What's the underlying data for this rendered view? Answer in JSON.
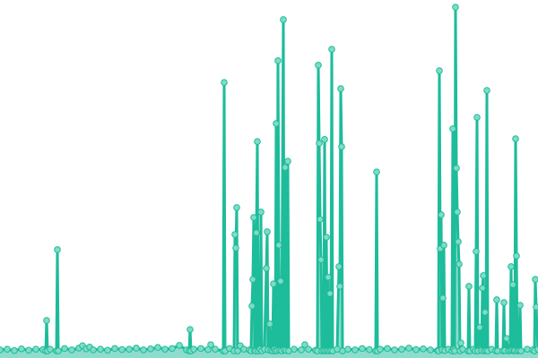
{
  "chart_data": {
    "type": "area",
    "title": "",
    "xlabel": "",
    "ylabel": "",
    "xlim": [
      0,
      600
    ],
    "ylim": [
      0,
      100
    ],
    "grid": false,
    "axes_visible": false,
    "legend": "none",
    "colors": {
      "line": "#1dbc9a",
      "marker_fill": "#7edcc5",
      "area": "#1dbc9a"
    },
    "series": [
      {
        "points": [
          [
            0,
            0.8
          ],
          [
            8,
            1
          ],
          [
            16,
            0.6
          ],
          [
            24,
            1.1
          ],
          [
            32,
            0.7
          ],
          [
            40,
            1
          ],
          [
            48,
            0.9
          ],
          [
            51,
            0.5
          ],
          [
            52,
            9.3
          ],
          [
            53,
            0.5
          ],
          [
            56,
            1
          ],
          [
            63,
            0.5
          ],
          [
            64,
            29.8
          ],
          [
            65,
            0.5
          ],
          [
            72,
            1.2
          ],
          [
            80,
            0.8
          ],
          [
            88,
            1.3
          ],
          [
            92,
            2
          ],
          [
            96,
            1.1
          ],
          [
            100,
            1.6
          ],
          [
            104,
            0.8
          ],
          [
            112,
            1
          ],
          [
            120,
            0.7
          ],
          [
            128,
            1.2
          ],
          [
            136,
            0.9
          ],
          [
            144,
            1
          ],
          [
            152,
            1.3
          ],
          [
            160,
            0.8
          ],
          [
            168,
            1.1
          ],
          [
            176,
            1.5
          ],
          [
            184,
            1
          ],
          [
            192,
            1.2
          ],
          [
            200,
            2.1
          ],
          [
            208,
            0.8
          ],
          [
            211,
            0.5
          ],
          [
            212,
            6.7
          ],
          [
            213,
            0.5
          ],
          [
            216,
            1
          ],
          [
            224,
            1.2
          ],
          [
            232,
            0.9
          ],
          [
            235,
            2.3
          ],
          [
            240,
            1
          ],
          [
            249,
            0.5
          ],
          [
            250,
            78.2
          ],
          [
            251,
            0.5
          ],
          [
            256,
            1.2
          ],
          [
            261,
            0.5
          ],
          [
            262,
            34.2
          ],
          [
            263,
            30.3
          ],
          [
            264,
            42
          ],
          [
            265,
            0.5
          ],
          [
            268,
            2
          ],
          [
            272,
            1
          ],
          [
            278,
            0.8
          ],
          [
            280,
            0.5
          ],
          [
            281,
            13.5
          ],
          [
            282,
            21.2
          ],
          [
            283,
            39.1
          ],
          [
            284,
            0.6
          ],
          [
            285,
            0.5
          ],
          [
            286,
            34.7
          ],
          [
            287,
            61.1
          ],
          [
            288,
            0.5
          ],
          [
            290,
            1
          ],
          [
            291,
            40.7
          ],
          [
            292,
            0.5
          ],
          [
            295,
            1
          ],
          [
            297,
            24.4
          ],
          [
            298,
            35
          ],
          [
            299,
            0.8
          ],
          [
            301,
            8.3
          ],
          [
            302,
            0.6
          ],
          [
            304,
            0.5
          ],
          [
            305,
            19.9
          ],
          [
            306,
            1
          ],
          [
            307,
            0.5
          ],
          [
            308,
            66.3
          ],
          [
            309,
            0.6
          ],
          [
            310,
            84.5
          ],
          [
            311,
            31.1
          ],
          [
            312,
            0.7
          ],
          [
            313,
            20.7
          ],
          [
            314,
            0.5
          ],
          [
            316,
            96.4
          ],
          [
            317,
            0.8
          ],
          [
            318,
            53.6
          ],
          [
            319,
            0.6
          ],
          [
            321,
            55.4
          ],
          [
            322,
            0.5
          ],
          [
            328,
            1
          ],
          [
            336,
            0.8
          ],
          [
            340,
            2.3
          ],
          [
            344,
            1
          ],
          [
            352,
            0.7
          ],
          [
            354,
            0.5
          ],
          [
            355,
            83.2
          ],
          [
            356,
            60.6
          ],
          [
            357,
            38.6
          ],
          [
            358,
            26.9
          ],
          [
            359,
            0.5
          ],
          [
            361,
            0.6
          ],
          [
            362,
            61.7
          ],
          [
            363,
            0.5
          ],
          [
            364,
            33.4
          ],
          [
            365,
            0.6
          ],
          [
            366,
            21.8
          ],
          [
            367,
            0.5
          ],
          [
            368,
            17.1
          ],
          [
            369,
            0.6
          ],
          [
            370,
            87.8
          ],
          [
            371,
            0.5
          ],
          [
            376,
            1
          ],
          [
            378,
            24.9
          ],
          [
            379,
            19.2
          ],
          [
            380,
            76.4
          ],
          [
            381,
            59.6
          ],
          [
            382,
            0.5
          ],
          [
            388,
            1
          ],
          [
            396,
            0.8
          ],
          [
            404,
            1.2
          ],
          [
            412,
            0.9
          ],
          [
            419,
            0.5
          ],
          [
            420,
            52.3
          ],
          [
            421,
            0.5
          ],
          [
            424,
            1
          ],
          [
            432,
            1.2
          ],
          [
            440,
            0.8
          ],
          [
            448,
            1
          ],
          [
            456,
            1.3
          ],
          [
            464,
            0.9
          ],
          [
            472,
            1.1
          ],
          [
            480,
            0.8
          ],
          [
            488,
            0.6
          ],
          [
            489,
            0.5
          ],
          [
            490,
            81.6
          ],
          [
            491,
            30.1
          ],
          [
            492,
            39.9
          ],
          [
            493,
            0.8
          ],
          [
            494,
            15.8
          ],
          [
            495,
            31.1
          ],
          [
            496,
            0.6
          ],
          [
            500,
            1
          ],
          [
            504,
            0.5
          ],
          [
            505,
            64.8
          ],
          [
            506,
            1
          ],
          [
            507,
            0.5
          ],
          [
            508,
            100
          ],
          [
            509,
            53.4
          ],
          [
            510,
            40.7
          ],
          [
            511,
            32.1
          ],
          [
            512,
            25.6
          ],
          [
            513,
            0.5
          ],
          [
            514,
            2.8
          ],
          [
            516,
            1
          ],
          [
            522,
            0.5
          ],
          [
            523,
            19.2
          ],
          [
            524,
            0.5
          ],
          [
            528,
            1
          ],
          [
            530,
            0.5
          ],
          [
            531,
            29.3
          ],
          [
            532,
            68.1
          ],
          [
            533,
            0.5
          ],
          [
            535,
            7.3
          ],
          [
            537,
            0.6
          ],
          [
            538,
            18.7
          ],
          [
            539,
            22.3
          ],
          [
            540,
            0.5
          ],
          [
            541,
            11.7
          ],
          [
            542,
            0.6
          ],
          [
            543,
            75.9
          ],
          [
            544,
            0.5
          ],
          [
            548,
            1
          ],
          [
            553,
            0.5
          ],
          [
            554,
            15.3
          ],
          [
            555,
            0.5
          ],
          [
            561,
            0.5
          ],
          [
            562,
            14.5
          ],
          [
            563,
            0.6
          ],
          [
            565,
            4.1
          ],
          [
            567,
            0.5
          ],
          [
            569,
            0.6
          ],
          [
            570,
            24.9
          ],
          [
            571,
            0.7
          ],
          [
            572,
            19.7
          ],
          [
            573,
            0.5
          ],
          [
            574,
            0.6
          ],
          [
            575,
            61.9
          ],
          [
            576,
            28
          ],
          [
            577,
            0.5
          ],
          [
            579,
            0.6
          ],
          [
            580,
            13.7
          ],
          [
            581,
            0.5
          ],
          [
            588,
            1
          ],
          [
            594,
            0.8
          ],
          [
            596,
            0.5
          ],
          [
            597,
            21.2
          ],
          [
            598,
            13.2
          ],
          [
            600,
            1
          ]
        ]
      }
    ]
  }
}
